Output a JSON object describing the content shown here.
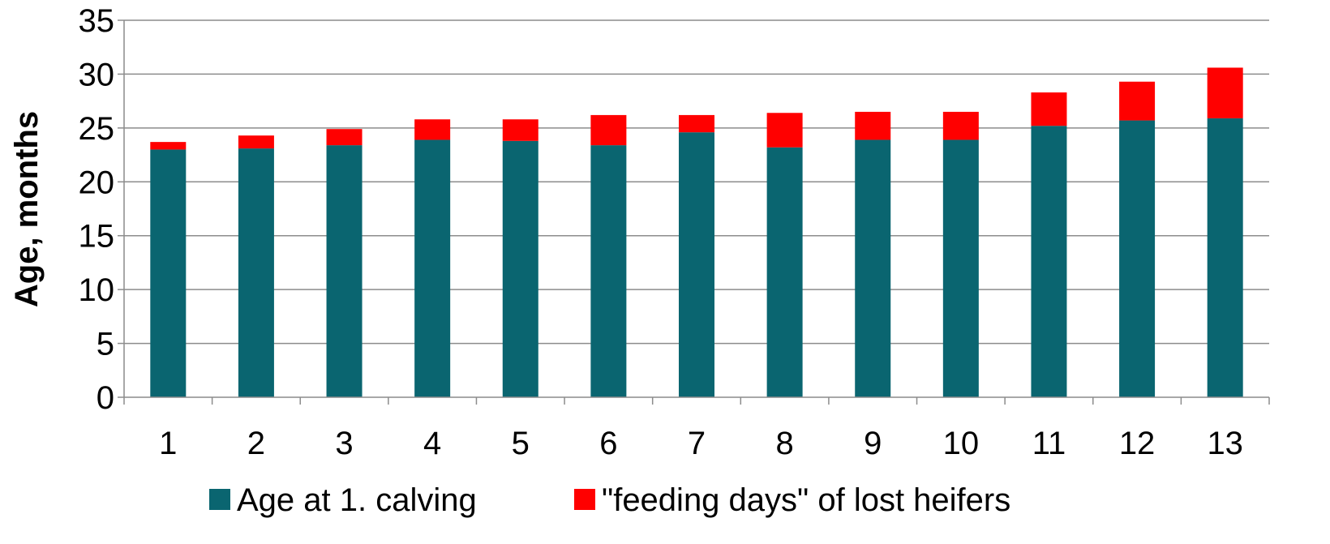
{
  "chart_data": {
    "type": "bar",
    "stacked": true,
    "categories": [
      "1",
      "2",
      "3",
      "4",
      "5",
      "6",
      "7",
      "8",
      "9",
      "10",
      "11",
      "12",
      "13"
    ],
    "series": [
      {
        "name": "Age at 1. calving",
        "color": "#0a6570",
        "values": [
          23.0,
          23.1,
          23.4,
          23.9,
          23.8,
          23.4,
          24.6,
          23.2,
          23.9,
          23.9,
          25.2,
          25.7,
          25.9
        ]
      },
      {
        "name": "\"feeding days\" of lost heifers",
        "color": "#ff0000",
        "values": [
          0.7,
          1.2,
          1.5,
          1.9,
          2.0,
          2.8,
          1.6,
          3.2,
          2.6,
          2.6,
          3.1,
          3.6,
          4.7
        ]
      }
    ],
    "xlabel": "",
    "ylabel": "Age, months",
    "ylim": [
      0,
      35
    ],
    "yticks": [
      0,
      5,
      10,
      15,
      20,
      25,
      30,
      35
    ],
    "grid": true,
    "legend_position": "bottom"
  }
}
